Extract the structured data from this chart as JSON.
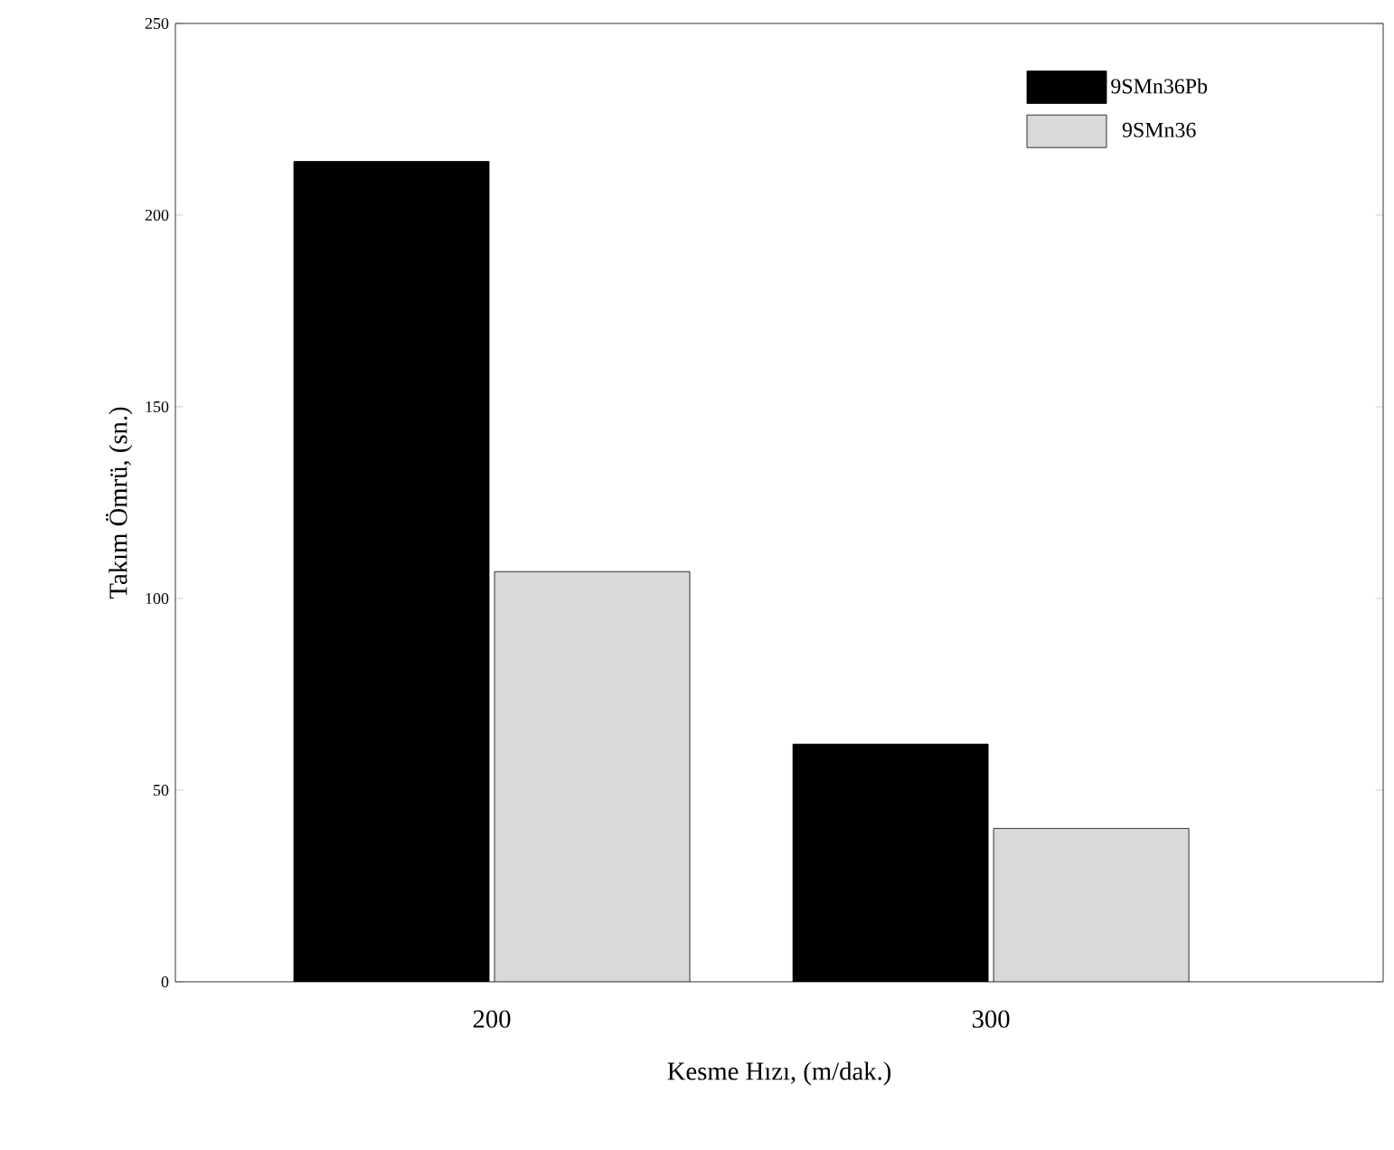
{
  "chart_data": {
    "type": "bar",
    "xlabel": "Kesme Hızı, (m/dak.)",
    "ylabel": "Takım Ömrü, (sn.)",
    "categories": [
      "200",
      "300"
    ],
    "series": [
      {
        "name": "9SMn36Pb",
        "color": "#000000",
        "values": [
          214,
          62
        ]
      },
      {
        "name": "9SMn36",
        "color": "#d9d9d9",
        "values": [
          107,
          40
        ]
      }
    ],
    "ylim": [
      0,
      250
    ],
    "yticks": [
      0,
      50,
      100,
      150,
      200,
      250
    ],
    "legend": "top right",
    "grid": false
  }
}
